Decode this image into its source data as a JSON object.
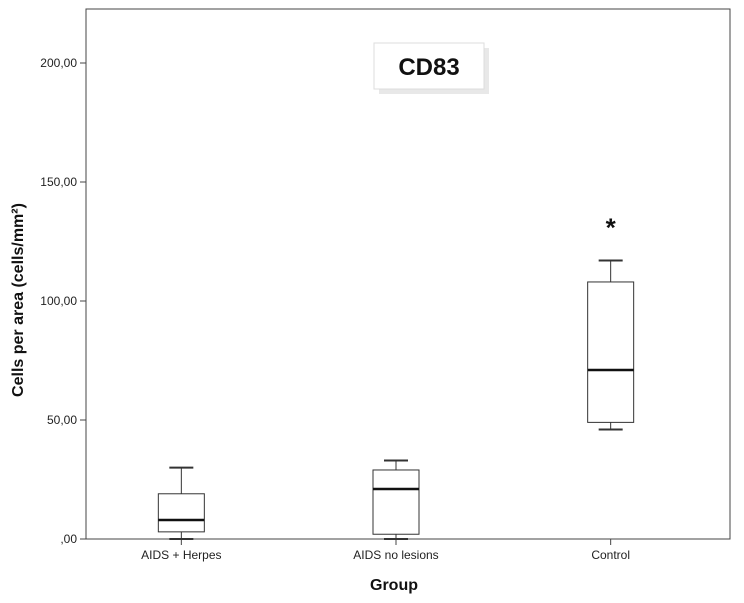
{
  "chart_data": {
    "type": "boxplot",
    "title": "CD83",
    "xlabel": "Group",
    "ylabel": "Cells per area (cells/mm²)",
    "ylim": [
      0,
      220
    ],
    "y_ticks": [
      0,
      50,
      100,
      150,
      200
    ],
    "y_tick_labels": [
      ",00",
      "50,00",
      "100,00",
      "150,00",
      "200,00"
    ],
    "categories": [
      "AIDS + Herpes",
      "AIDS no lesions",
      "Control"
    ],
    "boxes": [
      {
        "category": "AIDS + Herpes",
        "min": 0,
        "q1": 3,
        "median": 8,
        "q3": 19,
        "max": 30,
        "annotation": ""
      },
      {
        "category": "AIDS no lesions",
        "min": 0,
        "q1": 2,
        "median": 21,
        "q3": 29,
        "max": 33,
        "annotation": ""
      },
      {
        "category": "Control",
        "min": 46,
        "q1": 49,
        "median": 71,
        "q3": 108,
        "max": 117,
        "annotation": "*"
      }
    ],
    "grid": false,
    "legend": "none",
    "colors": {
      "box_fill": "#ffffff",
      "box_stroke": "#333333",
      "median": "#111111",
      "background": "#ffffff"
    }
  }
}
